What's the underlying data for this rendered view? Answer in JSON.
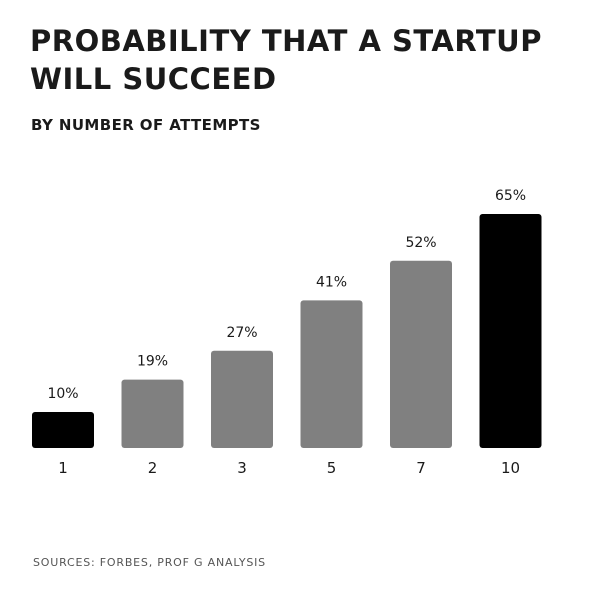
{
  "header": {
    "title_line1": "PROBABILITY THAT A STARTUP",
    "title_line2": "WILL SUCCEED",
    "subtitle": "BY NUMBER OF ATTEMPTS"
  },
  "footer": {
    "source": "SOURCES: FORBES, PROF G ANALYSIS"
  },
  "colors": {
    "highlight": "#000000",
    "default": "#808080",
    "text": "#1a1a1a"
  },
  "chart_data": {
    "type": "bar",
    "title": "PROBABILITY THAT A STARTUP WILL SUCCEED",
    "subtitle": "BY NUMBER OF ATTEMPTS",
    "xlabel": "",
    "ylabel": "",
    "categories": [
      "1",
      "2",
      "3",
      "5",
      "7",
      "10"
    ],
    "values": [
      10,
      19,
      27,
      41,
      52,
      65
    ],
    "labels": [
      "10%",
      "19%",
      "27%",
      "41%",
      "52%",
      "65%"
    ],
    "highlighted": [
      "1",
      "10"
    ],
    "ylim": [
      0,
      65
    ],
    "grid": false,
    "legend": "none"
  }
}
